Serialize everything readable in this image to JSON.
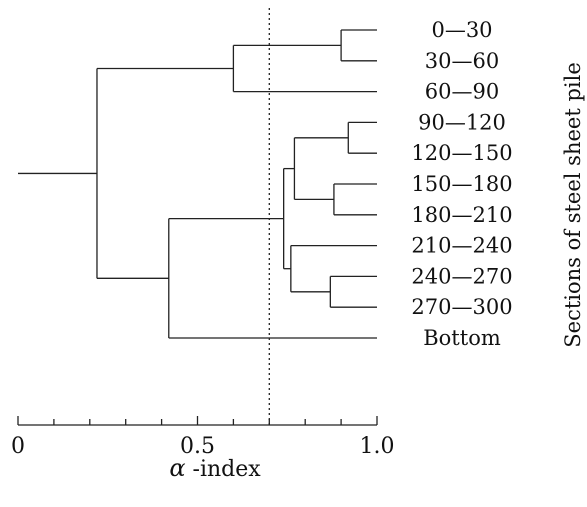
{
  "leaves": [
    "0—30",
    "30—60",
    "60—90",
    "90—120",
    "120—150",
    "150—180",
    "180—210",
    "210—240",
    "240—270",
    "270—300",
    "Bottom"
  ],
  "side_label": "Sections of  steel sheet pile",
  "axis": {
    "title_symbol": "α",
    "title_text": " -index",
    "min": 0,
    "max": 1.0,
    "major_ticks": [
      0,
      0.5,
      1.0
    ],
    "tick_labels": [
      "0",
      "0.5",
      "1.0"
    ],
    "minor_step": 0.1
  },
  "threshold": 0.7,
  "merges": [
    {
      "a": "L0",
      "b": "L1",
      "height": 0.9
    },
    {
      "a": "N0",
      "b": "L2",
      "height": 0.6
    },
    {
      "a": "L3",
      "b": "L4",
      "height": 0.92
    },
    {
      "a": "L5",
      "b": "L6",
      "height": 0.88
    },
    {
      "a": "N2",
      "b": "N3",
      "height": 0.77
    },
    {
      "a": "L8",
      "b": "L9",
      "height": 0.87
    },
    {
      "a": "L7",
      "b": "N5",
      "height": 0.76
    },
    {
      "a": "N4",
      "b": "N6",
      "height": 0.74
    },
    {
      "a": "N7",
      "b": "L10",
      "height": 0.42
    },
    {
      "a": "N1",
      "b": "N8",
      "height": 0.22
    }
  ],
  "root_stub": 0.0,
  "colors": {
    "line": "#222222",
    "text": "#111111",
    "background": "#ffffff"
  }
}
